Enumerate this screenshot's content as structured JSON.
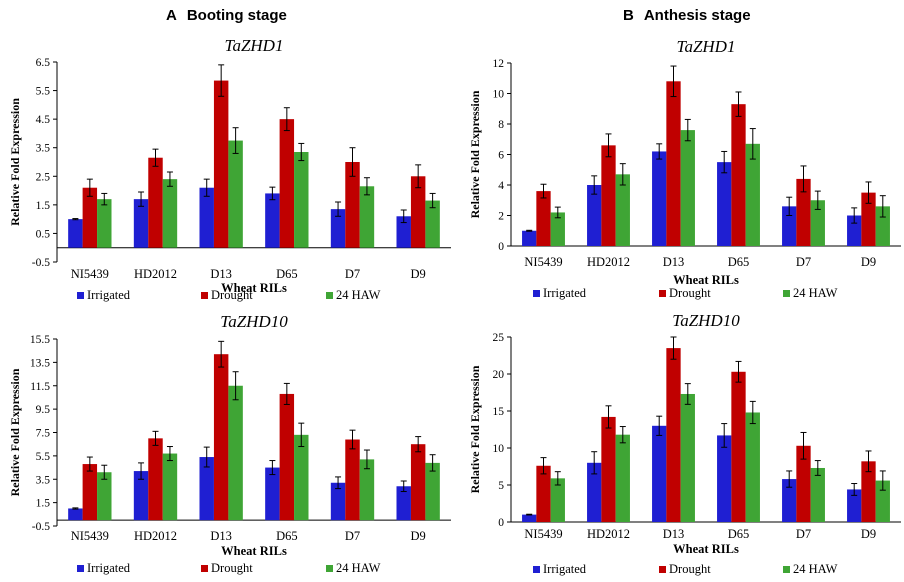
{
  "panels": [
    {
      "letter": "A",
      "title": "Booting stage"
    },
    {
      "letter": "B",
      "title": "Anthesis stage"
    }
  ],
  "legend_labels": [
    "Irrigated",
    "Drought",
    "24 HAW"
  ],
  "colors": {
    "Irrigated": "#1f1fd2",
    "Drought": "#c00000",
    "24 HAW": "#3fa535",
    "axis": "#000000",
    "error": "#000000"
  },
  "chart_data": [
    {
      "type": "bar",
      "panel": "A",
      "title": "TaZHD1",
      "xlabel": "Wheat RILs",
      "ylabel": "Relative Fold Expression",
      "categories": [
        "NI5439",
        "HD2012",
        "D13",
        "D65",
        "D7",
        "D9"
      ],
      "ylim": [
        -0.5,
        6.5
      ],
      "yticks": [
        "-0.5",
        "0.5",
        "1.5",
        "2.5",
        "3.5",
        "4.5",
        "5.5",
        "6.5"
      ],
      "series": [
        {
          "name": "Irrigated",
          "values": [
            1.0,
            1.7,
            2.1,
            1.9,
            1.35,
            1.1
          ],
          "errors": [
            0.02,
            0.25,
            0.3,
            0.22,
            0.25,
            0.22
          ]
        },
        {
          "name": "Drought",
          "values": [
            2.1,
            3.15,
            5.85,
            4.5,
            3.0,
            2.5
          ],
          "errors": [
            0.3,
            0.3,
            0.55,
            0.4,
            0.5,
            0.4
          ]
        },
        {
          "name": "24 HAW",
          "values": [
            1.7,
            2.4,
            3.75,
            3.35,
            2.15,
            1.65
          ],
          "errors": [
            0.2,
            0.25,
            0.45,
            0.3,
            0.3,
            0.25
          ]
        }
      ]
    },
    {
      "type": "bar",
      "panel": "B",
      "title": "TaZHD1",
      "xlabel": "Wheat RILs",
      "ylabel": "Relative Fold Expression",
      "categories": [
        "NI5439",
        "HD2012",
        "D13",
        "D65",
        "D7",
        "D9"
      ],
      "ylim": [
        0,
        12
      ],
      "yticks": [
        "0",
        "2",
        "4",
        "6",
        "8",
        "10",
        "12"
      ],
      "series": [
        {
          "name": "Irrigated",
          "values": [
            1.0,
            4.0,
            6.2,
            5.5,
            2.6,
            2.0
          ],
          "errors": [
            0.03,
            0.6,
            0.5,
            0.7,
            0.6,
            0.5
          ]
        },
        {
          "name": "Drought",
          "values": [
            3.6,
            6.6,
            10.8,
            9.3,
            4.4,
            3.5
          ],
          "errors": [
            0.45,
            0.75,
            1.0,
            0.8,
            0.85,
            0.7
          ]
        },
        {
          "name": "24 HAW",
          "values": [
            2.2,
            4.7,
            7.6,
            6.7,
            3.0,
            2.6
          ],
          "errors": [
            0.35,
            0.7,
            0.7,
            1.0,
            0.6,
            0.7
          ]
        }
      ]
    },
    {
      "type": "bar",
      "panel": "A",
      "title": "TaZHD10",
      "xlabel": "Wheat RILs",
      "ylabel": "Relative Fold Expression",
      "categories": [
        "NI5439",
        "HD2012",
        "D13",
        "D65",
        "D7",
        "D9"
      ],
      "ylim": [
        -0.5,
        15.5
      ],
      "yticks": [
        "-0.5",
        "1.5",
        "3.5",
        "5.5",
        "7.5",
        "9.5",
        "11.5",
        "13.5",
        "15.5"
      ],
      "series": [
        {
          "name": "Irrigated",
          "values": [
            1.0,
            4.2,
            5.4,
            4.5,
            3.2,
            2.9
          ],
          "errors": [
            0.05,
            0.7,
            0.85,
            0.6,
            0.5,
            0.45
          ]
        },
        {
          "name": "Drought",
          "values": [
            4.8,
            7.0,
            14.2,
            10.8,
            6.9,
            6.5
          ],
          "errors": [
            0.6,
            0.6,
            1.1,
            0.9,
            0.8,
            0.65
          ]
        },
        {
          "name": "24 HAW",
          "values": [
            4.1,
            5.7,
            11.5,
            7.3,
            5.2,
            4.9
          ],
          "errors": [
            0.6,
            0.6,
            1.2,
            1.0,
            0.8,
            0.7
          ]
        }
      ]
    },
    {
      "type": "bar",
      "panel": "B",
      "title": "TaZHD10",
      "xlabel": "Wheat RILs",
      "ylabel": "Relative Fold Expression",
      "categories": [
        "NI5439",
        "HD2012",
        "D13",
        "D65",
        "D7",
        "D9"
      ],
      "ylim": [
        0,
        25
      ],
      "yticks": [
        "0",
        "5",
        "10",
        "15",
        "20",
        "25"
      ],
      "series": [
        {
          "name": "Irrigated",
          "values": [
            1.0,
            8.0,
            13.0,
            11.7,
            5.8,
            4.4
          ],
          "errors": [
            0.05,
            1.5,
            1.3,
            1.6,
            1.1,
            0.8
          ]
        },
        {
          "name": "Drought",
          "values": [
            7.6,
            14.2,
            23.5,
            20.3,
            10.3,
            8.2
          ],
          "errors": [
            1.1,
            1.5,
            1.5,
            1.4,
            1.8,
            1.4
          ]
        },
        {
          "name": "24 HAW",
          "values": [
            5.9,
            11.8,
            17.3,
            14.8,
            7.3,
            5.6
          ],
          "errors": [
            0.9,
            1.1,
            1.4,
            1.5,
            1.0,
            1.3
          ]
        }
      ]
    }
  ]
}
